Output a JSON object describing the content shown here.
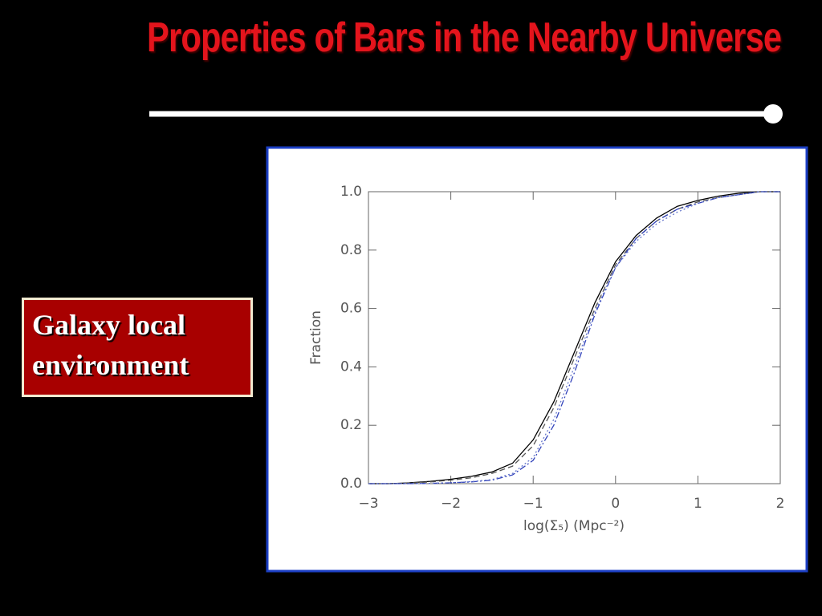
{
  "title": "Properties of Bars in the Nearby Universe",
  "label_box": "Galaxy local environment",
  "chart_data": {
    "type": "line",
    "x_label": "log(Σ₅) (Mpc⁻²)",
    "y_label": "Fraction",
    "x": [
      -3,
      -2.75,
      -2.5,
      -2.25,
      -2,
      -1.75,
      -1.5,
      -1.25,
      -1,
      -0.75,
      -0.5,
      -0.25,
      0,
      0.25,
      0.5,
      0.75,
      1,
      1.25,
      1.5,
      1.75,
      2
    ],
    "series": [
      {
        "color": "#000000",
        "style": "solid",
        "values": [
          0,
          0,
          0.003,
          0.008,
          0.015,
          0.025,
          0.04,
          0.07,
          0.15,
          0.28,
          0.45,
          0.62,
          0.76,
          0.85,
          0.91,
          0.95,
          0.97,
          0.985,
          0.995,
          1,
          1
        ]
      },
      {
        "color": "#555555",
        "style": "dashed",
        "values": [
          0,
          0,
          0.002,
          0.006,
          0.012,
          0.02,
          0.035,
          0.06,
          0.13,
          0.26,
          0.43,
          0.6,
          0.75,
          0.84,
          0.9,
          0.94,
          0.965,
          0.98,
          0.99,
          1,
          1
        ]
      },
      {
        "color": "#3344bb",
        "style": "dashdot",
        "values": [
          0,
          0,
          0,
          0.001,
          0.003,
          0.006,
          0.012,
          0.03,
          0.08,
          0.2,
          0.38,
          0.58,
          0.74,
          0.84,
          0.9,
          0.94,
          0.96,
          0.98,
          0.99,
          1,
          1
        ]
      },
      {
        "color": "#6677cc",
        "style": "dotted",
        "values": [
          0,
          0,
          0,
          0.001,
          0.003,
          0.007,
          0.014,
          0.035,
          0.09,
          0.22,
          0.4,
          0.59,
          0.74,
          0.83,
          0.89,
          0.93,
          0.96,
          0.98,
          0.99,
          1,
          1
        ]
      }
    ],
    "xlim": [
      -3,
      2
    ],
    "xticks": [
      {
        "value": -3,
        "label": "−3"
      },
      {
        "value": -2,
        "label": "−2"
      },
      {
        "value": -1,
        "label": "−1"
      },
      0,
      1,
      2
    ],
    "ylim": [
      0,
      1
    ],
    "yticks": [
      {
        "value": 0,
        "label": "0.0"
      },
      0.2,
      0.4,
      0.6,
      0.8,
      {
        "value": 1,
        "label": "1.0"
      }
    ]
  }
}
